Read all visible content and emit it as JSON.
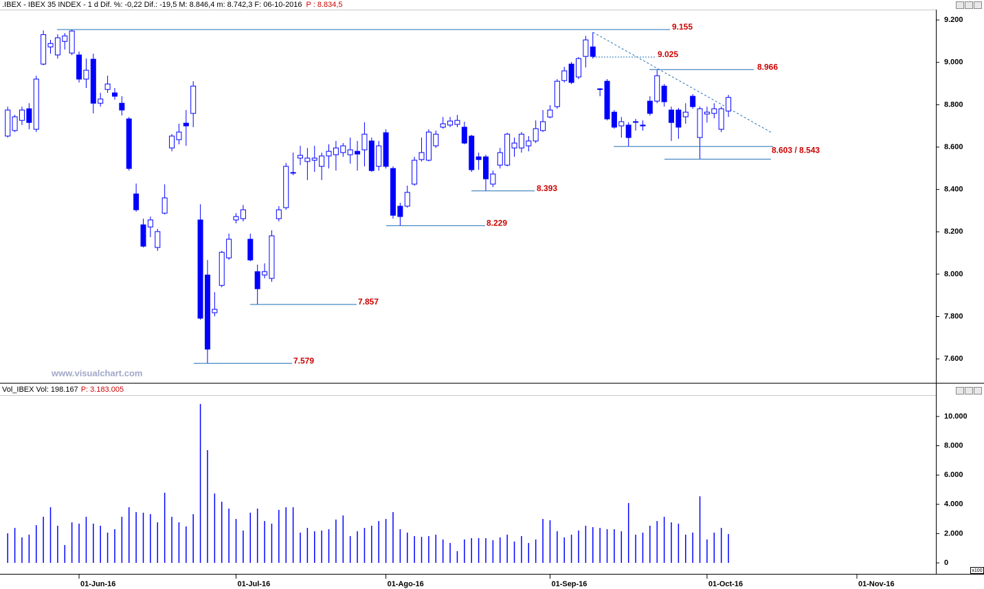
{
  "watermark": "www.visualchart.com",
  "chart_data": [
    {
      "type": "candlestick",
      "title": ".IBEX - IBEX 35 INDEX - 1 d  Dif. %: -0,22  Dif.: -19,5  M: 8.846,4  m: 8.742,3  F: 06-10-2016",
      "subtitle": "P : 8.834,5",
      "color": "#0000ff",
      "categories": [
        null,
        null,
        null,
        null,
        null,
        null,
        null,
        null,
        null,
        null,
        "01-Jun-16",
        null,
        null,
        null,
        null,
        null,
        null,
        null,
        null,
        null,
        null,
        null,
        null,
        null,
        null,
        null,
        null,
        null,
        null,
        null,
        null,
        null,
        "01-Jul-16",
        null,
        null,
        null,
        null,
        null,
        null,
        null,
        null,
        null,
        null,
        null,
        null,
        null,
        null,
        null,
        null,
        null,
        null,
        null,
        null,
        "01-Ago-16",
        null,
        null,
        null,
        null,
        null,
        null,
        null,
        null,
        null,
        null,
        null,
        null,
        null,
        null,
        null,
        null,
        null,
        null,
        null,
        null,
        null,
        null,
        "01-Sep-16",
        null,
        null,
        null,
        null,
        null,
        null,
        null,
        null,
        null,
        null,
        null,
        null,
        null,
        null,
        null,
        null,
        null,
        null,
        null,
        null,
        null,
        "01-Oct-16",
        null,
        null,
        null,
        null,
        null,
        null,
        null,
        null,
        null,
        null,
        null,
        null,
        null,
        null,
        null,
        null,
        null,
        null,
        null,
        null,
        "01-Nov-16"
      ],
      "open": [
        8652,
        8678,
        8726,
        8781,
        8684,
        8992,
        9073,
        9035,
        9099,
        9044,
        9035,
        8921,
        9015,
        8807,
        8872,
        8856,
        8807,
        8733,
        8379,
        8233,
        8223,
        8126,
        8288,
        8596,
        8635,
        8713,
        8759,
        8256,
        7996,
        7818,
        7947,
        8077,
        8256,
        8262,
        8165,
        8012,
        7996,
        7980,
        8262,
        8314,
        8480,
        8548,
        8532,
        8538,
        8509,
        8558,
        8564,
        8574,
        8564,
        8580,
        8587,
        8629,
        8509,
        8668,
        8499,
        8321,
        8321,
        8425,
        8541,
        8538,
        8606,
        8694,
        8704,
        8707,
        8694,
        8652,
        8554,
        8554,
        8425,
        8515,
        8515,
        8596,
        8596,
        8606,
        8629,
        8678,
        8742,
        8791,
        8914,
        8992,
        8931,
        9028,
        9073,
        8875,
        8911,
        8765,
        8700,
        8704,
        8720,
        8704,
        8817,
        8817,
        8888,
        8775,
        8775,
        8743,
        8840,
        8645,
        8756,
        8759,
        8684,
        8770,
        null,
        null,
        null,
        null,
        null,
        null,
        null,
        null,
        null,
        null,
        null,
        null,
        null,
        null,
        null,
        null,
        null,
        null
      ],
      "high": [
        8791,
        8752,
        8791,
        8807,
        8937,
        9151,
        9106,
        9132,
        9138,
        9155,
        9051,
        9018,
        9041,
        8856,
        8937,
        8879,
        8840,
        8742,
        8428,
        8262,
        8272,
        8214,
        8424,
        8661,
        8710,
        8775,
        8911,
        8330,
        8067,
        7915,
        8110,
        8191,
        8288,
        8327,
        8191,
        8045,
        8051,
        8207,
        8321,
        8525,
        8574,
        8606,
        8596,
        8606,
        8574,
        8613,
        8629,
        8619,
        8645,
        8629,
        8717,
        8645,
        8629,
        8684,
        8509,
        8337,
        8418,
        8554,
        8645,
        8684,
        8678,
        8742,
        8742,
        8752,
        8720,
        8658,
        8574,
        8564,
        8489,
        8596,
        8668,
        8645,
        8671,
        8652,
        8726,
        8775,
        8798,
        8921,
        8979,
        9002,
        9025,
        9125,
        9142,
        8879,
        8921,
        8775,
        8742,
        8717,
        8733,
        8726,
        8840,
        8966,
        8898,
        8791,
        8785,
        8807,
        8850,
        8791,
        8791,
        8807,
        8791,
        8846.4,
        null,
        null,
        null,
        null,
        null,
        null,
        null,
        null,
        null,
        null,
        null,
        null,
        null,
        null,
        null,
        null,
        null,
        null
      ],
      "low": [
        8645,
        8671,
        8704,
        8684,
        8671,
        8986,
        9041,
        9018,
        9060,
        9034,
        8905,
        8879,
        8759,
        8791,
        8856,
        8824,
        8749,
        8489,
        8295,
        8126,
        8175,
        8110,
        8282,
        8580,
        8613,
        8606,
        8694,
        7785,
        7579,
        7801,
        7938,
        8067,
        8240,
        8249,
        8061,
        7857,
        7980,
        7964,
        8249,
        8304,
        8467,
        8515,
        8444,
        8483,
        8444,
        8499,
        8489,
        8554,
        8522,
        8489,
        8509,
        8483,
        8489,
        8499,
        8262,
        8229,
        8314,
        8418,
        8532,
        8532,
        8596,
        8687,
        8694,
        8694,
        8613,
        8483,
        8493,
        8393,
        8411,
        8499,
        8509,
        8554,
        8574,
        8580,
        8619,
        8671,
        8736,
        8781,
        8905,
        8898,
        8921,
        8976,
        9018,
        8840,
        8726,
        8687,
        8645,
        8603,
        8678,
        8678,
        8749,
        8807,
        8791,
        8629,
        8639,
        8710,
        8781,
        8543,
        8716,
        8736,
        8671,
        8742.3,
        null,
        null,
        null,
        null,
        null,
        null,
        null,
        null,
        null,
        null,
        null,
        null,
        null,
        null,
        null,
        null,
        null,
        null
      ],
      "close": [
        8775,
        8743,
        8775,
        8716,
        8921,
        9131,
        9089,
        9116,
        9125,
        9148,
        8921,
        8963,
        8807,
        8827,
        8898,
        8840,
        8775,
        8499,
        8304,
        8132,
        8256,
        8201,
        8360,
        8652,
        8671,
        8700,
        8888,
        7792,
        7646,
        7834,
        8103,
        8165,
        8272,
        8304,
        8067,
        7931,
        8012,
        8181,
        8304,
        8509,
        8477,
        8561,
        8548,
        8548,
        8558,
        8580,
        8596,
        8606,
        8587,
        8567,
        8661,
        8489,
        8606,
        8509,
        8278,
        8272,
        8386,
        8538,
        8574,
        8671,
        8661,
        8710,
        8723,
        8726,
        8619,
        8493,
        8541,
        8450,
        8473,
        8574,
        8661,
        8619,
        8661,
        8629,
        8687,
        8720,
        8775,
        8911,
        8960,
        8905,
        9018,
        9106,
        9028,
        8872,
        8733,
        8694,
        8720,
        8645,
        8717,
        8700,
        8759,
        8937,
        8814,
        8716,
        8694,
        8765,
        8791,
        8781,
        8765,
        8781,
        8781,
        8834.5,
        null,
        null,
        null,
        null,
        null,
        null,
        null,
        null,
        null,
        null,
        null,
        null,
        null,
        null,
        null,
        null,
        null,
        null
      ],
      "ylim": [
        7487,
        9249
      ],
      "yticks": [
        {
          "value": 9200,
          "label": "9.200"
        },
        {
          "value": 9000,
          "label": "9.000"
        },
        {
          "value": 8800,
          "label": "8.800"
        },
        {
          "value": 8600,
          "label": "8.600"
        },
        {
          "value": 8400,
          "label": "8.400"
        },
        {
          "value": 8200,
          "label": "8.200"
        },
        {
          "value": 8000,
          "label": "8.000"
        },
        {
          "value": 7800,
          "label": "7.800"
        },
        {
          "value": 7600,
          "label": "7.600"
        }
      ],
      "annotations": [
        {
          "label": "9.155",
          "values": [
            9155
          ]
        },
        {
          "label": "9.025",
          "values": [
            9025
          ]
        },
        {
          "label": "8.966",
          "values": [
            8966
          ]
        },
        {
          "label": "8.603 / 8.543",
          "values": [
            8603,
            8543
          ]
        },
        {
          "label": "8.393",
          "values": [
            8393
          ]
        },
        {
          "label": "8.229",
          "values": [
            8229
          ]
        },
        {
          "label": "7.857",
          "values": [
            7857
          ]
        },
        {
          "label": "7.579",
          "values": [
            7579
          ]
        }
      ]
    },
    {
      "type": "bar",
      "title": "Vol_IBEX Vol: 198.167",
      "subtitle": "P: 3.183.005",
      "unit_label": "x100",
      "color": "#0000ff",
      "values": [
        2020,
        2390,
        1740,
        1930,
        2580,
        3150,
        3800,
        2540,
        1220,
        2770,
        2680,
        3150,
        2680,
        2540,
        2070,
        2300,
        3150,
        3800,
        3470,
        3430,
        3330,
        2770,
        4790,
        3150,
        2770,
        2490,
        3330,
        10850,
        7700,
        4740,
        4180,
        3710,
        3000,
        2210,
        3430,
        3710,
        2860,
        2680,
        3620,
        3800,
        3800,
        2070,
        2390,
        2160,
        2210,
        2300,
        2960,
        3240,
        1830,
        2160,
        2390,
        2540,
        2860,
        3000,
        3470,
        2300,
        2070,
        1830,
        1780,
        1830,
        1930,
        1600,
        1360,
        800,
        1600,
        1690,
        1690,
        1690,
        1550,
        1740,
        1930,
        1460,
        1830,
        1360,
        1600,
        3000,
        2910,
        2160,
        1740,
        1930,
        2210,
        2540,
        2440,
        2390,
        2300,
        2300,
        2160,
        4090,
        1930,
        2070,
        2540,
        2860,
        3150,
        2770,
        2680,
        1930,
        2070,
        4550,
        1600,
        2070,
        2390,
        1970,
        null,
        null,
        null,
        null,
        null,
        null,
        null,
        null,
        null,
        null,
        null,
        null,
        null,
        null,
        null,
        null,
        null,
        null
      ],
      "ylim": [
        -751,
        11455
      ],
      "yticks": [
        {
          "value": 10000,
          "label": "10.000"
        },
        {
          "value": 8000,
          "label": "8.000"
        },
        {
          "value": 6000,
          "label": "6.000"
        },
        {
          "value": 4000,
          "label": "4.000"
        },
        {
          "value": 2000,
          "label": "2.000"
        },
        0
      ]
    }
  ]
}
